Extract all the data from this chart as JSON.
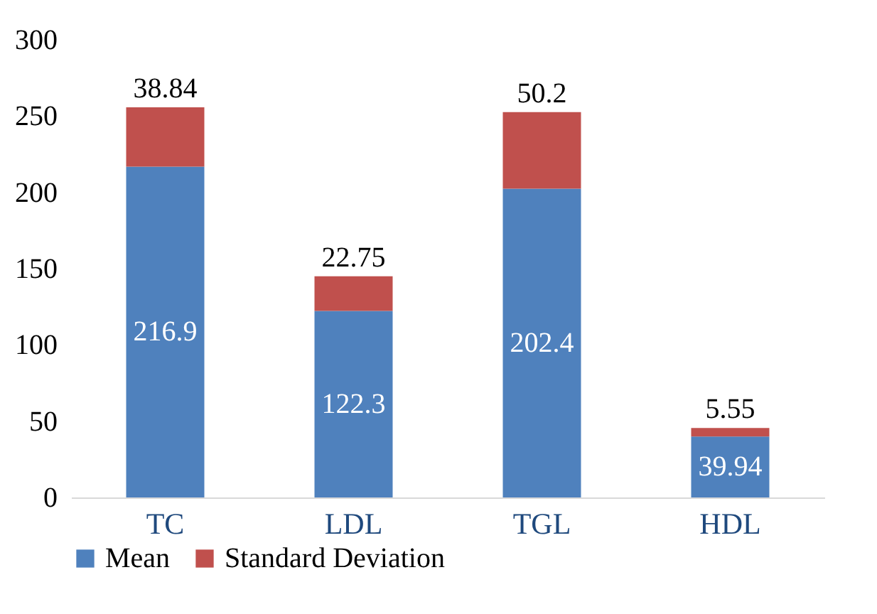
{
  "chart_data": {
    "type": "bar",
    "stacked": true,
    "categories": [
      "TC",
      "LDL",
      "TGL",
      "HDL"
    ],
    "series": [
      {
        "name": "Mean",
        "color": "#4f81bd",
        "values": [
          216.9,
          122.3,
          202.4,
          39.94
        ]
      },
      {
        "name": "Standard Deviation",
        "color": "#c0504d",
        "values": [
          38.84,
          22.75,
          50.2,
          5.55
        ]
      }
    ],
    "ylim": [
      0,
      300
    ],
    "yticks": [
      0,
      50,
      100,
      150,
      200,
      250,
      300
    ],
    "grid": false,
    "legend": "bottom",
    "data_labels": true
  }
}
